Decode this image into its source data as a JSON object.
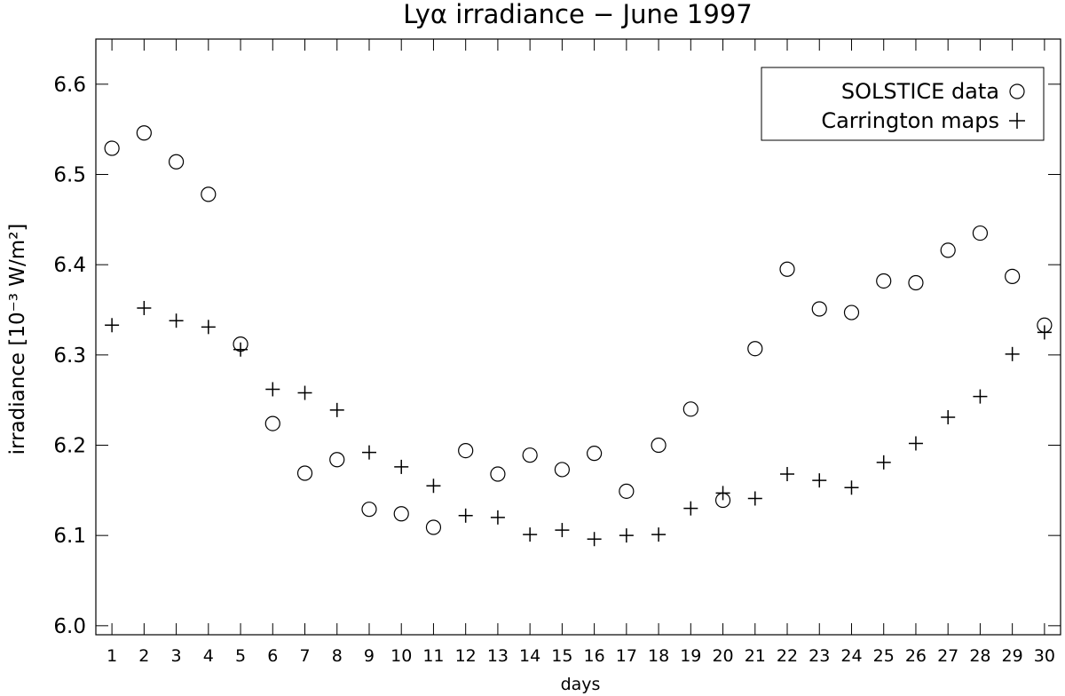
{
  "chart_data": {
    "type": "scatter",
    "title": "Lyα irradiance − June 1997",
    "xlabel": "days",
    "ylabel": "irradiance [10⁻³ W/m²]",
    "xlim": [
      0.5,
      30.5
    ],
    "ylim": [
      5.99,
      6.65
    ],
    "x_ticks": [
      1,
      2,
      3,
      4,
      5,
      6,
      7,
      8,
      9,
      10,
      11,
      12,
      13,
      14,
      15,
      16,
      17,
      18,
      19,
      20,
      21,
      22,
      23,
      24,
      25,
      26,
      27,
      28,
      29,
      30
    ],
    "y_ticks": [
      6.0,
      6.1,
      6.2,
      6.3,
      6.4,
      6.5,
      6.6
    ],
    "y_tick_labels": [
      "6.0",
      "6.1",
      "6.2",
      "6.3",
      "6.4",
      "6.5",
      "6.6"
    ],
    "legend_position": "top-right",
    "grid": false,
    "series": [
      {
        "name": "SOLSTICE data",
        "marker": "circle",
        "x": [
          1,
          2,
          3,
          4,
          5,
          6,
          7,
          8,
          9,
          10,
          11,
          12,
          13,
          14,
          15,
          16,
          17,
          18,
          19,
          20,
          21,
          22,
          23,
          24,
          25,
          26,
          27,
          28,
          29,
          30
        ],
        "y": [
          6.529,
          6.546,
          6.514,
          6.478,
          6.312,
          6.224,
          6.169,
          6.184,
          6.129,
          6.124,
          6.109,
          6.194,
          6.168,
          6.189,
          6.173,
          6.191,
          6.149,
          6.2,
          6.24,
          6.139,
          6.307,
          6.395,
          6.351,
          6.347,
          6.382,
          6.38,
          6.416,
          6.435,
          6.387,
          6.333
        ]
      },
      {
        "name": "Carrington maps",
        "marker": "plus",
        "x": [
          1,
          2,
          3,
          4,
          5,
          6,
          7,
          8,
          9,
          10,
          11,
          12,
          13,
          14,
          15,
          16,
          17,
          18,
          19,
          20,
          21,
          22,
          23,
          24,
          25,
          26,
          27,
          28,
          29,
          30
        ],
        "y": [
          6.333,
          6.352,
          6.338,
          6.331,
          6.306,
          6.262,
          6.258,
          6.239,
          6.192,
          6.176,
          6.155,
          6.122,
          6.12,
          6.101,
          6.106,
          6.096,
          6.1,
          6.101,
          6.13,
          6.147,
          6.141,
          6.168,
          6.161,
          6.153,
          6.181,
          6.202,
          6.231,
          6.254,
          6.301,
          6.325
        ]
      }
    ]
  }
}
